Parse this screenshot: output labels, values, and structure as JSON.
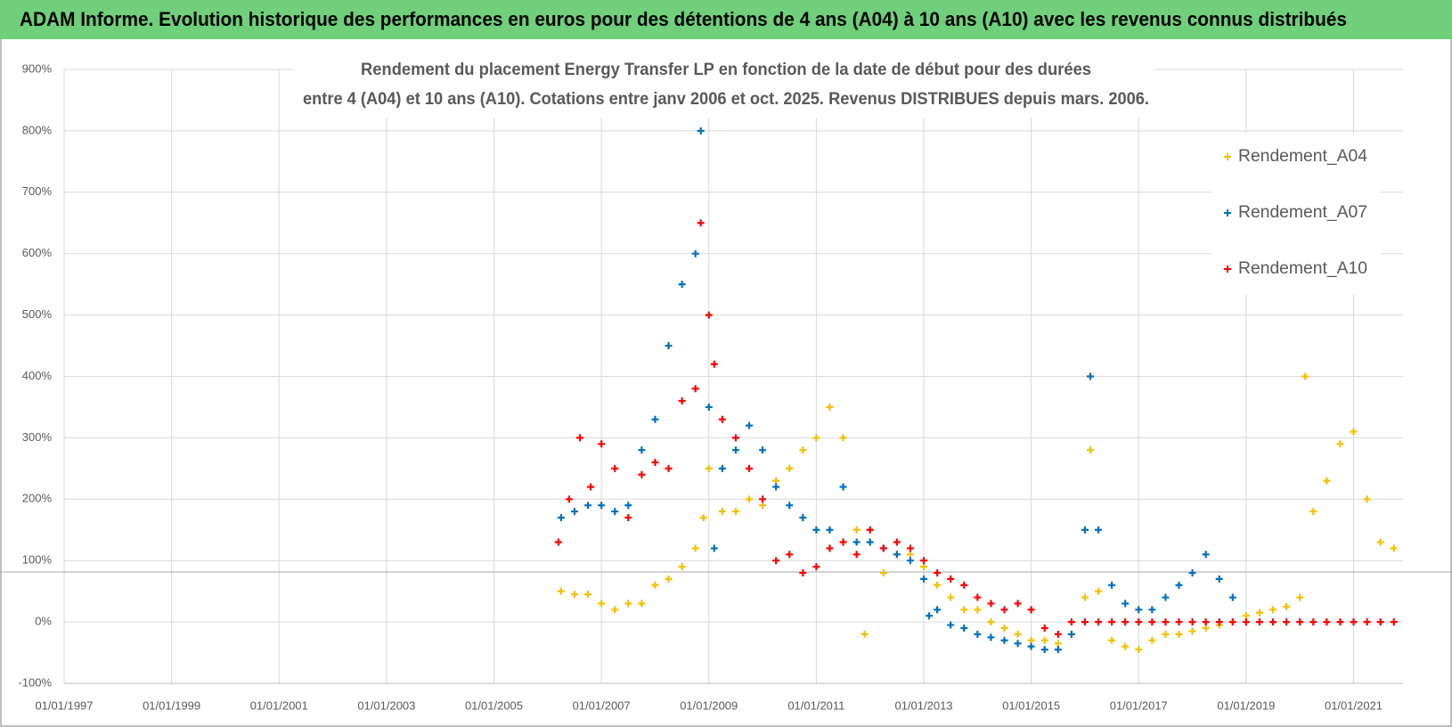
{
  "header": {
    "title": "ADAM Informe. Evolution historique des performances en euros pour des détentions de 4 ans (A04) à 10 ans (A10) avec les revenus connus distribués"
  },
  "chart_data": {
    "type": "scatter",
    "title": [
      "Rendement du placement Energy Transfer LP en fonction de la date de début pour des durées",
      "entre 4 (A04) et 10 ans (A10).  Cotations entre janv 2006 et oct. 2025.  Revenus DISTRIBUES depuis mars. 2006."
    ],
    "xlim": [
      1997,
      2021.92
    ],
    "xticks": [
      {
        "value": 1997,
        "label": "01/01/1997"
      },
      {
        "value": 1999,
        "label": "01/01/1999"
      },
      {
        "value": 2001,
        "label": "01/01/2001"
      },
      {
        "value": 2003,
        "label": "01/01/2003"
      },
      {
        "value": 2005,
        "label": "01/01/2005"
      },
      {
        "value": 2007,
        "label": "01/01/2007"
      },
      {
        "value": 2009,
        "label": "01/01/2009"
      },
      {
        "value": 2011,
        "label": "01/01/2011"
      },
      {
        "value": 2013,
        "label": "01/01/2013"
      },
      {
        "value": 2015,
        "label": "01/01/2015"
      },
      {
        "value": 2017,
        "label": "01/01/2017"
      },
      {
        "value": 2019,
        "label": "01/01/2019"
      },
      {
        "value": 2021,
        "label": "01/01/2021"
      }
    ],
    "ylim": [
      -100,
      900
    ],
    "yticks": [
      {
        "value": -100,
        "label": "-100%"
      },
      {
        "value": 0,
        "label": "0%"
      },
      {
        "value": 100,
        "label": "100%"
      },
      {
        "value": 200,
        "label": "200%"
      },
      {
        "value": 300,
        "label": "300%"
      },
      {
        "value": 400,
        "label": "400%"
      },
      {
        "value": 500,
        "label": "500%"
      },
      {
        "value": 600,
        "label": "600%"
      },
      {
        "value": 700,
        "label": "700%"
      },
      {
        "value": 800,
        "label": "800%"
      },
      {
        "value": 900,
        "label": "900%"
      }
    ],
    "grid": true,
    "legend": "upper right",
    "series": [
      {
        "name": "Rendement_A04",
        "color": "#f5c000",
        "x": [
          2006.25,
          2006.5,
          2006.75,
          2007,
          2007.25,
          2007.5,
          2007.75,
          2008,
          2008.25,
          2008.5,
          2008.75,
          2008.9,
          2009,
          2009.25,
          2009.5,
          2009.75,
          2010,
          2010.25,
          2010.5,
          2010.75,
          2011,
          2011.25,
          2011.5,
          2011.75,
          2011.9,
          2012.25,
          2012.5,
          2012.75,
          2013,
          2013.25,
          2013.5,
          2013.75,
          2014,
          2014.25,
          2014.5,
          2014.75,
          2015,
          2015.25,
          2015.5,
          2015.75,
          2016,
          2016.1,
          2016.25,
          2016.5,
          2016.75,
          2017,
          2017.25,
          2017.5,
          2017.75,
          2018,
          2018.25,
          2018.5,
          2018.75,
          2019,
          2019.25,
          2019.5,
          2019.75,
          2020,
          2020.1,
          2020.25,
          2020.5,
          2020.75,
          2021,
          2021.25,
          2021.5,
          2021.75
        ],
        "values": [
          50,
          45,
          45,
          30,
          20,
          30,
          30,
          60,
          70,
          90,
          120,
          170,
          250,
          180,
          180,
          200,
          190,
          230,
          250,
          280,
          300,
          350,
          300,
          150,
          -20,
          80,
          110,
          110,
          90,
          60,
          40,
          20,
          20,
          0,
          -10,
          -20,
          -30,
          -30,
          -35,
          -20,
          40,
          280,
          50,
          -30,
          -40,
          -45,
          -30,
          -20,
          -20,
          -15,
          -10,
          -5,
          0,
          10,
          15,
          20,
          25,
          40,
          400,
          180,
          230,
          290,
          310,
          200,
          130,
          120
        ]
      },
      {
        "name": "Rendement_A07",
        "color": "#0070c0",
        "x": [
          2006.25,
          2006.5,
          2006.75,
          2007,
          2007.25,
          2007.5,
          2007.75,
          2008,
          2008.25,
          2008.5,
          2008.75,
          2008.85,
          2009,
          2009.1,
          2009.25,
          2009.5,
          2009.75,
          2010,
          2010.25,
          2010.5,
          2010.75,
          2011,
          2011.25,
          2011.5,
          2011.75,
          2012,
          2012.25,
          2012.5,
          2012.75,
          2013,
          2013.1,
          2013.25,
          2013.5,
          2013.75,
          2014,
          2014.25,
          2014.5,
          2014.75,
          2015,
          2015.25,
          2015.5,
          2015.75,
          2016,
          2016.1,
          2016.25,
          2016.5,
          2016.75,
          2017,
          2017.25,
          2017.5,
          2017.75,
          2018,
          2018.25,
          2018.5,
          2018.75
        ],
        "values": [
          170,
          180,
          190,
          190,
          180,
          190,
          280,
          330,
          450,
          550,
          600,
          800,
          350,
          120,
          250,
          280,
          320,
          280,
          220,
          190,
          170,
          150,
          150,
          220,
          130,
          130,
          120,
          110,
          100,
          70,
          10,
          20,
          -5,
          -10,
          -20,
          -25,
          -30,
          -35,
          -40,
          -45,
          -45,
          -20,
          150,
          400,
          150,
          60,
          30,
          20,
          20,
          40,
          60,
          80,
          110,
          70,
          40
        ]
      },
      {
        "name": "Rendement_A10",
        "color": "#ff0000",
        "x": [
          2006.2,
          2006.4,
          2006.6,
          2006.8,
          2007,
          2007.25,
          2007.5,
          2007.75,
          2008,
          2008.25,
          2008.5,
          2008.75,
          2008.85,
          2009,
          2009.1,
          2009.25,
          2009.5,
          2009.75,
          2010,
          2010.25,
          2010.5,
          2010.75,
          2011,
          2011.25,
          2011.5,
          2011.75,
          2012,
          2012.25,
          2012.5,
          2012.75,
          2013,
          2013.25,
          2013.5,
          2013.75,
          2014,
          2014.25,
          2014.5,
          2014.75,
          2015,
          2015.25,
          2015.5,
          2015.75,
          2016,
          2016.25,
          2016.5,
          2016.75,
          2017,
          2017.25,
          2017.5,
          2017.75,
          2018,
          2018.25,
          2018.5,
          2018.75,
          2019,
          2019.25,
          2019.5,
          2019.75,
          2020,
          2020.25,
          2020.5,
          2020.75,
          2021,
          2021.25,
          2021.5,
          2021.75
        ],
        "values": [
          130,
          200,
          300,
          220,
          290,
          250,
          170,
          240,
          260,
          250,
          360,
          380,
          650,
          500,
          420,
          330,
          300,
          250,
          200,
          100,
          110,
          80,
          90,
          120,
          130,
          110,
          150,
          120,
          130,
          120,
          100,
          80,
          70,
          60,
          40,
          30,
          20,
          30,
          20,
          -10,
          -20,
          0,
          0,
          0,
          0,
          0,
          0,
          0,
          0,
          0,
          0,
          0,
          0,
          0,
          0,
          0,
          0,
          0,
          0,
          0,
          0,
          0,
          0,
          0,
          0,
          0
        ]
      }
    ]
  }
}
